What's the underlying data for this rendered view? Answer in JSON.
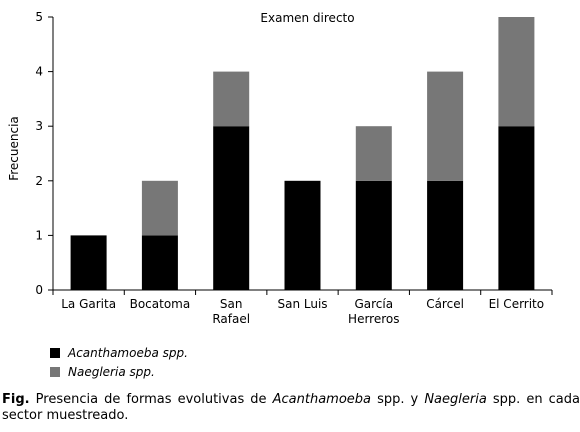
{
  "chart_data": {
    "type": "bar",
    "stacked": true,
    "title": "Examen directo",
    "ylabel": "Frecuencia",
    "xlabel": "",
    "ylim": [
      0,
      5
    ],
    "yticks": [
      0,
      1,
      2,
      3,
      4,
      5
    ],
    "categories": [
      [
        "La Garita"
      ],
      [
        "Bocatoma"
      ],
      [
        "San",
        "Rafael"
      ],
      [
        "San Luis"
      ],
      [
        "García",
        "Herreros"
      ],
      [
        "Cárcel"
      ],
      [
        "El Cerrito"
      ]
    ],
    "series": [
      {
        "name": "Acanthamoeba spp.",
        "color": "#000000",
        "values": [
          1,
          1,
          3,
          2,
          2,
          2,
          3
        ]
      },
      {
        "name": "Naegleria spp.",
        "color": "#777777",
        "values": [
          0,
          1,
          1,
          0,
          1,
          2,
          2
        ]
      }
    ],
    "legend_position": "bottom-left"
  },
  "caption": {
    "label": "Fig.",
    "parts": [
      {
        "t": " Presencia de formas evolutivas de ",
        "i": false
      },
      {
        "t": "Acanthamoeba",
        "i": true
      },
      {
        "t": " spp. y ",
        "i": false
      },
      {
        "t": "Naegleria",
        "i": true
      },
      {
        "t": " spp. en cada sector muestreado.",
        "i": false
      }
    ]
  }
}
